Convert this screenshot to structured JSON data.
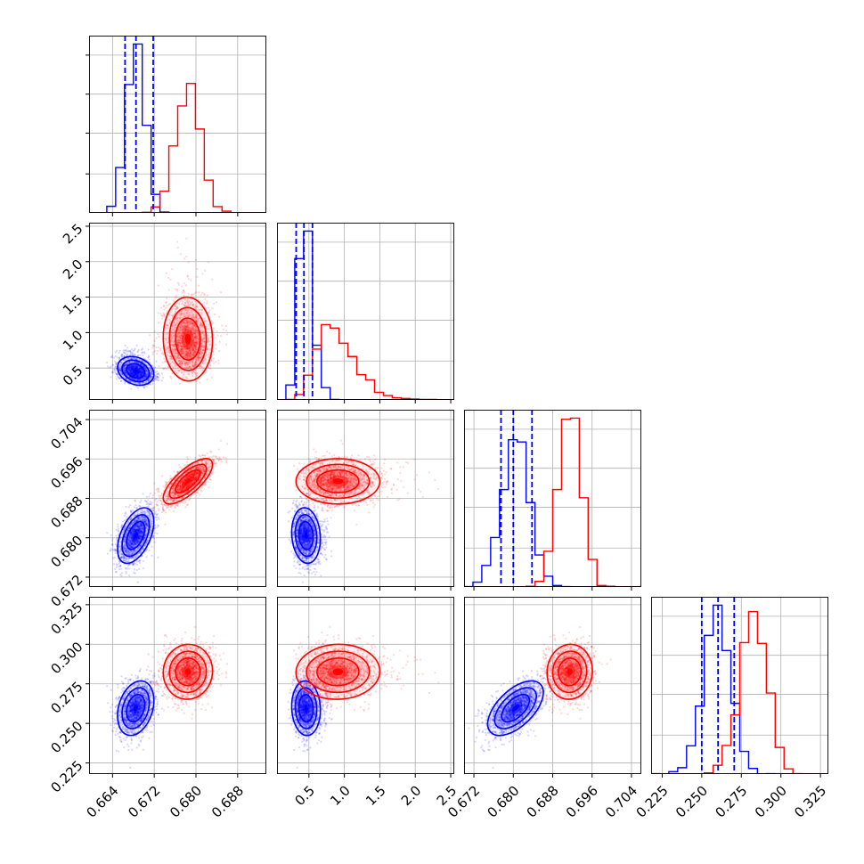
{
  "chart_data": {
    "type": "corner",
    "params": [
      {
        "lim": [
          0.6595,
          0.6935
        ],
        "ticks": [
          0.664,
          0.672,
          0.68,
          0.688
        ],
        "tick_labels": [
          "0.664",
          "0.672",
          "0.680",
          "0.688"
        ]
      },
      {
        "lim": [
          0.05,
          2.55
        ],
        "ticks": [
          0.5,
          1.0,
          1.5,
          2.0,
          2.5
        ],
        "tick_labels": [
          "0.5",
          "1.0",
          "1.5",
          "2.0",
          "2.5"
        ]
      },
      {
        "lim": [
          0.67,
          0.706
        ],
        "ticks": [
          0.672,
          0.68,
          0.688,
          0.696,
          0.704
        ],
        "tick_labels": [
          "0.672",
          "0.680",
          "0.688",
          "0.696",
          "0.704"
        ]
      },
      {
        "lim": [
          0.218,
          0.33
        ],
        "ticks": [
          0.225,
          0.25,
          0.275,
          0.3,
          0.325
        ],
        "tick_labels": [
          "0.225",
          "0.250",
          "0.275",
          "0.300",
          "0.325"
        ]
      }
    ],
    "series": [
      {
        "color": "#0000ff",
        "mean": [
          0.6685,
          0.45,
          0.6805,
          0.2595
        ],
        "sd": [
          0.0018,
          0.1,
          0.0028,
          0.0085
        ],
        "quantiles": [
          [
            0.6664,
            0.6685,
            0.6718
          ],
          [
            0.32,
            0.43,
            0.55
          ],
          [
            0.6775,
            0.68,
            0.6838
          ],
          [
            0.25,
            0.2603,
            0.2705
          ]
        ]
      },
      {
        "color": "#ff0000",
        "mean": [
          0.6785,
          0.9,
          0.6915,
          0.2825
        ],
        "sd": [
          0.0023,
          0.33,
          0.0023,
          0.0085
        ],
        "quantiles": [],
        "skew": [
          0,
          1,
          0,
          0
        ]
      }
    ],
    "grid": true,
    "quantile_lines": "dashed, blue series only"
  }
}
